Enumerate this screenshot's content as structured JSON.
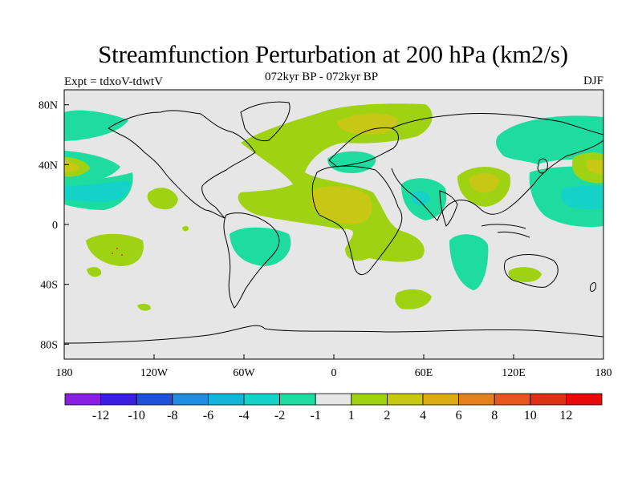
{
  "title": "Streamfunction Perturbation at 200 hPa (km2/s)",
  "subtitle": "072kyr BP - 072kyr BP",
  "experiment_label": "Expt = tdxoV-tdwtV",
  "season_label": "DJF",
  "chart_data": {
    "type": "heatmap",
    "projection": "cylindrical-equidistant",
    "lon_range": [
      -180,
      180
    ],
    "lat_range": [
      -90,
      90
    ],
    "x_tick_labels": [
      "180",
      "120W",
      "60W",
      "0",
      "60E",
      "120E",
      "180"
    ],
    "y_tick_labels": [
      "80N",
      "40N",
      "0",
      "40S",
      "80S"
    ],
    "colorbar": {
      "labels": [
        "-12",
        "-10",
        "-8",
        "-6",
        "-4",
        "-2",
        "-1",
        "1",
        "2",
        "4",
        "6",
        "8",
        "10",
        "12"
      ],
      "colors": [
        "#8a1ee0",
        "#3c1ee0",
        "#1e50d8",
        "#1e8ce0",
        "#14b4dc",
        "#14d2c8",
        "#1edca0",
        "#e6e6e6",
        "#a0d214",
        "#c8c814",
        "#dcaa14",
        "#e6821e",
        "#e6561e",
        "#dc3214",
        "#e60a0a"
      ]
    },
    "anomaly_regions": [
      {
        "center": [
          -160,
          40
        ],
        "level": "-2 to -1"
      },
      {
        "center": [
          -175,
          40
        ],
        "level": "2 to 4"
      },
      {
        "center": [
          -170,
          18
        ],
        "level": "-4 to -2"
      },
      {
        "center": [
          -150,
          -18
        ],
        "level": "1 to 2"
      },
      {
        "center": [
          -150,
          70
        ],
        "level": "-2 to -1"
      },
      {
        "center": [
          -105,
          18
        ],
        "level": "1 to 2"
      },
      {
        "center": [
          -55,
          -10
        ],
        "level": "-2 to -1"
      },
      {
        "center": [
          -20,
          25
        ],
        "level": "1 to 2"
      },
      {
        "center": [
          15,
          18
        ],
        "level": "2 to 4"
      },
      {
        "center": [
          30,
          67
        ],
        "level": "2 to 4"
      },
      {
        "center": [
          15,
          42
        ],
        "level": "-2 to -1"
      },
      {
        "center": [
          55,
          15
        ],
        "level": "-4 to -2"
      },
      {
        "center": [
          100,
          25
        ],
        "level": "2 to 4"
      },
      {
        "center": [
          140,
          70
        ],
        "level": "-2 to -1"
      },
      {
        "center": [
          160,
          20
        ],
        "level": "-4 to -2"
      },
      {
        "center": [
          175,
          40
        ],
        "level": "2 to 4"
      },
      {
        "center": [
          100,
          -25
        ],
        "level": "-2 to -1"
      },
      {
        "center": [
          120,
          -32
        ],
        "level": "1 to 2"
      },
      {
        "center": [
          42,
          -50
        ],
        "level": "1 to 2"
      }
    ]
  }
}
